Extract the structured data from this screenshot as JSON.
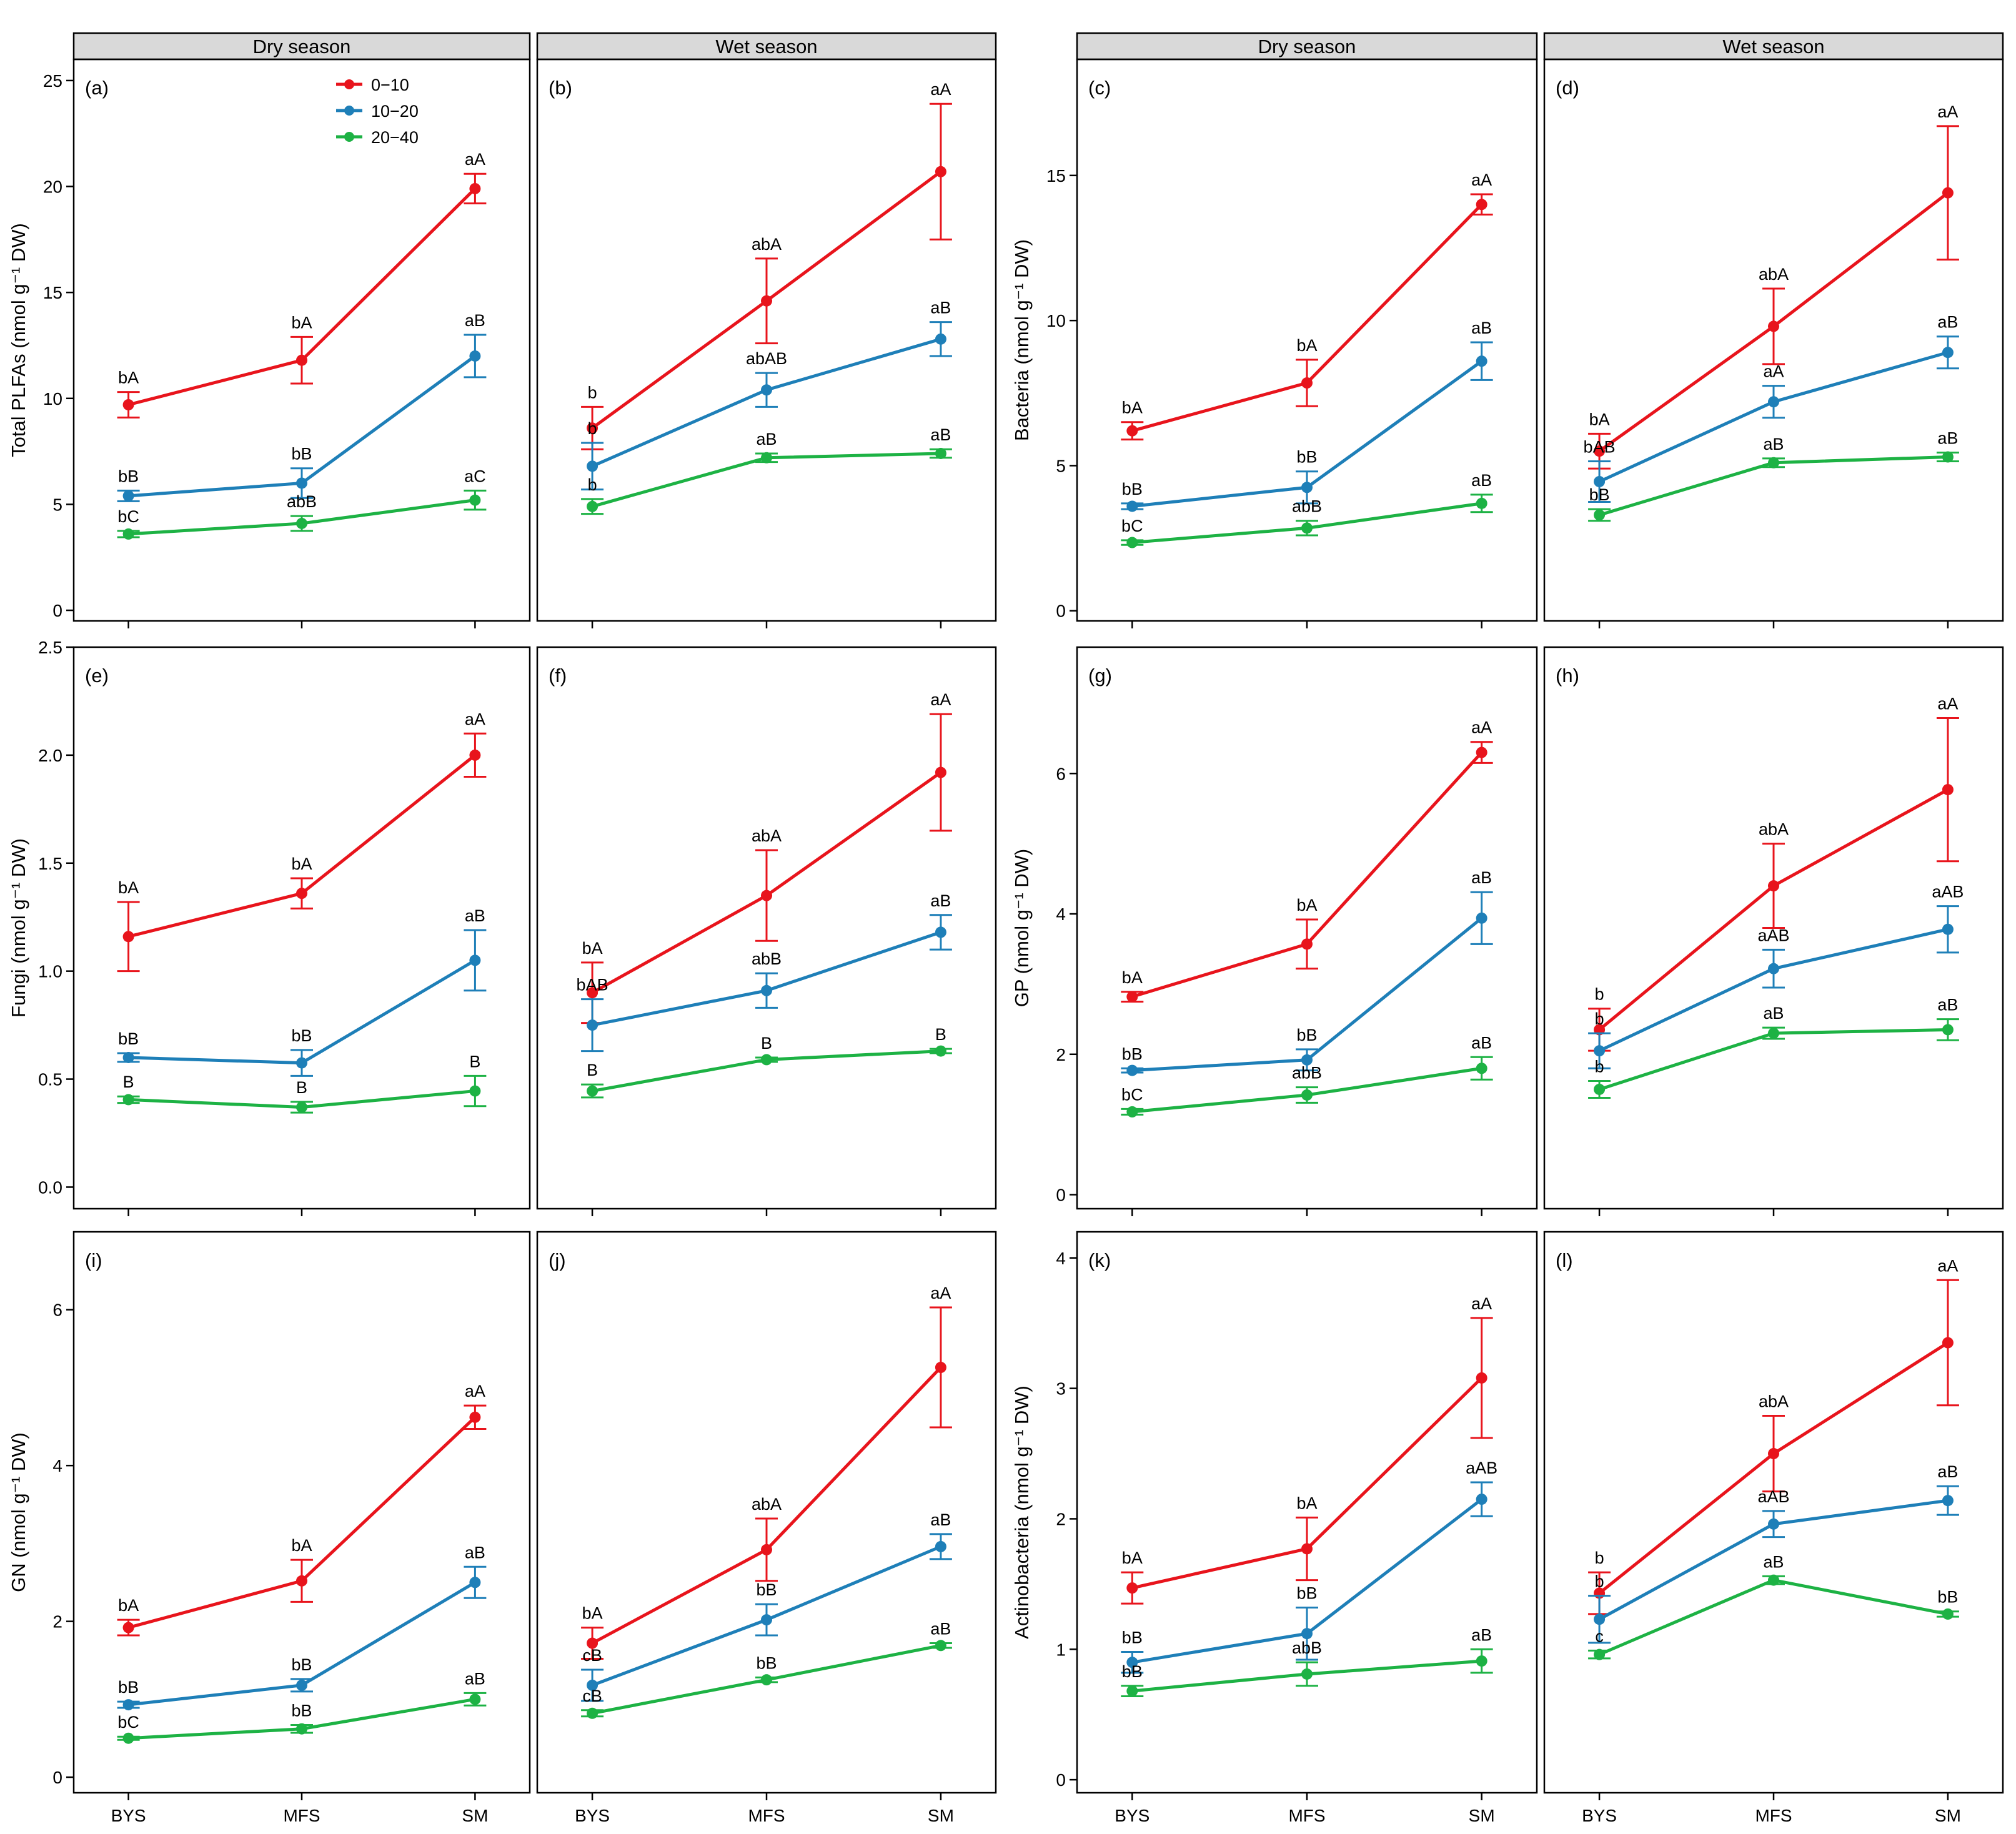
{
  "strips": [
    "Dry season",
    "Wet season"
  ],
  "x_categories": [
    "BYS",
    "MFS",
    "SM"
  ],
  "legend": [
    {
      "label": "0−10",
      "color": "#e8141c"
    },
    {
      "label": "10−20",
      "color": "#1e7fb8"
    },
    {
      "label": "20−40",
      "color": "#1db244"
    }
  ],
  "chart_data": [
    {
      "type": "line",
      "tag": "(a)",
      "strip": "Dry season",
      "ylabel": "Total PLFAs (nmol g⁻¹ DW)",
      "ylim": [
        -0.5,
        26
      ],
      "yticks": [
        0,
        5,
        10,
        15,
        20,
        25
      ],
      "categories": [
        "BYS",
        "MFS",
        "SM"
      ],
      "series": [
        {
          "name": "0−10",
          "values": [
            9.7,
            11.8,
            19.9
          ],
          "err": [
            0.6,
            1.1,
            0.7
          ],
          "labels": [
            "bA",
            "bA",
            "aA"
          ]
        },
        {
          "name": "10−20",
          "values": [
            5.4,
            6.0,
            12.0
          ],
          "err": [
            0.25,
            0.7,
            1.0
          ],
          "labels": [
            "bB",
            "bB",
            "aB"
          ]
        },
        {
          "name": "20−40",
          "values": [
            3.6,
            4.1,
            5.2
          ],
          "err": [
            0.15,
            0.35,
            0.45
          ],
          "labels": [
            "bC",
            "abB",
            "aC"
          ]
        }
      ]
    },
    {
      "type": "line",
      "tag": "(b)",
      "strip": "Wet season",
      "ylim": [
        -0.5,
        26
      ],
      "categories": [
        "BYS",
        "MFS",
        "SM"
      ],
      "series": [
        {
          "name": "0−10",
          "values": [
            8.6,
            14.6,
            20.7
          ],
          "err": [
            1.0,
            2.0,
            3.2
          ],
          "labels": [
            "b",
            "abA",
            "aA"
          ]
        },
        {
          "name": "10−20",
          "values": [
            6.8,
            10.4,
            12.8
          ],
          "err": [
            1.1,
            0.8,
            0.8
          ],
          "labels": [
            "b",
            "abAB",
            "aB"
          ]
        },
        {
          "name": "20−40",
          "values": [
            4.9,
            7.2,
            7.4
          ],
          "err": [
            0.35,
            0.2,
            0.2
          ],
          "labels": [
            "b",
            "aB",
            "aB"
          ]
        }
      ]
    },
    {
      "type": "line",
      "tag": "(c)",
      "strip": "Dry season",
      "ylabel": "Bacteria (nmol g⁻¹ DW)",
      "ylim": [
        -0.35,
        19
      ],
      "yticks": [
        0,
        5,
        10,
        15
      ],
      "categories": [
        "BYS",
        "MFS",
        "SM"
      ],
      "series": [
        {
          "name": "0−10",
          "values": [
            6.2,
            7.85,
            14.0
          ],
          "err": [
            0.3,
            0.8,
            0.35
          ],
          "labels": [
            "bA",
            "bA",
            "aA"
          ]
        },
        {
          "name": "10−20",
          "values": [
            3.6,
            4.25,
            8.6
          ],
          "err": [
            0.1,
            0.55,
            0.65
          ],
          "labels": [
            "bB",
            "bB",
            "aB"
          ]
        },
        {
          "name": "20−40",
          "values": [
            2.35,
            2.85,
            3.7
          ],
          "err": [
            0.08,
            0.25,
            0.3
          ],
          "labels": [
            "bC",
            "abB",
            "aB"
          ]
        }
      ]
    },
    {
      "type": "line",
      "tag": "(d)",
      "strip": "Wet season",
      "ylim": [
        -0.35,
        19
      ],
      "categories": [
        "BYS",
        "MFS",
        "SM"
      ],
      "series": [
        {
          "name": "0−10",
          "values": [
            5.5,
            9.8,
            14.4
          ],
          "err": [
            0.6,
            1.3,
            2.3
          ],
          "labels": [
            "bA",
            "abA",
            "aA"
          ]
        },
        {
          "name": "10−20",
          "values": [
            4.45,
            7.2,
            8.9
          ],
          "err": [
            0.7,
            0.55,
            0.55
          ],
          "labels": [
            "bAB",
            "aA",
            "aB"
          ]
        },
        {
          "name": "20−40",
          "values": [
            3.3,
            5.1,
            5.3
          ],
          "err": [
            0.2,
            0.15,
            0.15
          ],
          "labels": [
            "bB",
            "aB",
            "aB"
          ]
        }
      ]
    },
    {
      "type": "line",
      "tag": "(e)",
      "strip": "",
      "ylabel": "Fungi (nmol g⁻¹ DW)",
      "ylim": [
        -0.1,
        2.5
      ],
      "yticks": [
        0.0,
        0.5,
        1.0,
        1.5,
        2.0,
        2.5
      ],
      "categories": [
        "BYS",
        "MFS",
        "SM"
      ],
      "series": [
        {
          "name": "0−10",
          "values": [
            1.16,
            1.36,
            2.0
          ],
          "err": [
            0.16,
            0.07,
            0.1
          ],
          "labels": [
            "bA",
            "bA",
            "aA"
          ]
        },
        {
          "name": "10−20",
          "values": [
            0.6,
            0.575,
            1.05
          ],
          "err": [
            0.02,
            0.06,
            0.14
          ],
          "labels": [
            "bB",
            "bB",
            "aB"
          ]
        },
        {
          "name": "20−40",
          "values": [
            0.405,
            0.37,
            0.445
          ],
          "err": [
            0.015,
            0.025,
            0.07
          ],
          "labels": [
            "B",
            "B",
            "B"
          ]
        }
      ]
    },
    {
      "type": "line",
      "tag": "(f)",
      "strip": "",
      "ylim": [
        -0.1,
        2.5
      ],
      "categories": [
        "BYS",
        "MFS",
        "SM"
      ],
      "series": [
        {
          "name": "0−10",
          "values": [
            0.9,
            1.35,
            1.92
          ],
          "err": [
            0.14,
            0.21,
            0.27
          ],
          "labels": [
            "bA",
            "abA",
            "aA"
          ]
        },
        {
          "name": "10−20",
          "values": [
            0.75,
            0.91,
            1.18
          ],
          "err": [
            0.12,
            0.08,
            0.08
          ],
          "labels": [
            "bAB",
            "abB",
            "aB"
          ]
        },
        {
          "name": "20−40",
          "values": [
            0.445,
            0.59,
            0.63
          ],
          "err": [
            0.03,
            0.01,
            0.01
          ],
          "labels": [
            "B",
            "B",
            "B"
          ]
        }
      ]
    },
    {
      "type": "line",
      "tag": "(g)",
      "strip": "",
      "ylabel": "GP (nmol g⁻¹ DW)",
      "ylim": [
        -0.2,
        7.8
      ],
      "yticks": [
        0,
        2,
        4,
        6
      ],
      "categories": [
        "BYS",
        "MFS",
        "SM"
      ],
      "series": [
        {
          "name": "0−10",
          "values": [
            2.82,
            3.57,
            6.3
          ],
          "err": [
            0.07,
            0.35,
            0.15
          ],
          "labels": [
            "bA",
            "bA",
            "aA"
          ]
        },
        {
          "name": "10−20",
          "values": [
            1.77,
            1.92,
            3.94
          ],
          "err": [
            0.03,
            0.15,
            0.37
          ],
          "labels": [
            "bB",
            "bB",
            "aB"
          ]
        },
        {
          "name": "20−40",
          "values": [
            1.18,
            1.42,
            1.8
          ],
          "err": [
            0.04,
            0.11,
            0.16
          ],
          "labels": [
            "bC",
            "abB",
            "aB"
          ]
        }
      ]
    },
    {
      "type": "line",
      "tag": "(h)",
      "strip": "",
      "ylim": [
        -0.2,
        7.8
      ],
      "categories": [
        "BYS",
        "MFS",
        "SM"
      ],
      "series": [
        {
          "name": "0−10",
          "values": [
            2.35,
            4.4,
            5.77
          ],
          "err": [
            0.3,
            0.6,
            1.02
          ],
          "labels": [
            "b",
            "abA",
            "aA"
          ]
        },
        {
          "name": "10−20",
          "values": [
            2.05,
            3.22,
            3.78
          ],
          "err": [
            0.25,
            0.27,
            0.33
          ],
          "labels": [
            "b",
            "aAB",
            "aAB"
          ]
        },
        {
          "name": "20−40",
          "values": [
            1.5,
            2.3,
            2.35
          ],
          "err": [
            0.12,
            0.08,
            0.15
          ],
          "labels": [
            "b",
            "aB",
            "aB"
          ]
        }
      ]
    },
    {
      "type": "line",
      "tag": "(i)",
      "strip": "",
      "ylabel": "GN (nmol g⁻¹ DW)",
      "ylim": [
        -0.2,
        7.0
      ],
      "yticks": [
        0,
        2,
        4,
        6
      ],
      "categories": [
        "BYS",
        "MFS",
        "SM"
      ],
      "series": [
        {
          "name": "0−10",
          "values": [
            1.92,
            2.52,
            4.62
          ],
          "err": [
            0.1,
            0.27,
            0.15
          ],
          "labels": [
            "bA",
            "bA",
            "aA"
          ]
        },
        {
          "name": "10−20",
          "values": [
            0.93,
            1.18,
            2.5
          ],
          "err": [
            0.04,
            0.08,
            0.2
          ],
          "labels": [
            "bB",
            "bB",
            "aB"
          ]
        },
        {
          "name": "20−40",
          "values": [
            0.5,
            0.62,
            1.0
          ],
          "err": [
            0.02,
            0.05,
            0.08
          ],
          "labels": [
            "bC",
            "bB",
            "aB"
          ]
        }
      ]
    },
    {
      "type": "line",
      "tag": "(j)",
      "strip": "",
      "ylim": [
        -0.2,
        7.0
      ],
      "categories": [
        "BYS",
        "MFS",
        "SM"
      ],
      "series": [
        {
          "name": "0−10",
          "values": [
            1.72,
            2.92,
            5.26
          ],
          "err": [
            0.2,
            0.4,
            0.77
          ],
          "labels": [
            "bA",
            "abA",
            "aA"
          ]
        },
        {
          "name": "10−20",
          "values": [
            1.18,
            2.02,
            2.96
          ],
          "err": [
            0.2,
            0.2,
            0.16
          ],
          "labels": [
            "cB",
            "bB",
            "aB"
          ]
        },
        {
          "name": "20−40",
          "values": [
            0.82,
            1.25,
            1.69
          ],
          "err": [
            0.04,
            0.03,
            0.03
          ],
          "labels": [
            "cB",
            "bB",
            "aB"
          ]
        }
      ]
    },
    {
      "type": "line",
      "tag": "(k)",
      "strip": "",
      "ylabel": "Actinobacteria (nmol g⁻¹ DW)",
      "ylim": [
        -0.1,
        4.2
      ],
      "yticks": [
        0,
        1,
        2,
        3,
        4
      ],
      "categories": [
        "BYS",
        "MFS",
        "SM"
      ],
      "series": [
        {
          "name": "0−10",
          "values": [
            1.47,
            1.77,
            3.08
          ],
          "err": [
            0.12,
            0.24,
            0.46
          ],
          "labels": [
            "bA",
            "bA",
            "aA"
          ]
        },
        {
          "name": "10−20",
          "values": [
            0.9,
            1.12,
            2.15
          ],
          "err": [
            0.08,
            0.2,
            0.13
          ],
          "labels": [
            "bB",
            "bB",
            "aAB"
          ]
        },
        {
          "name": "20−40",
          "values": [
            0.68,
            0.81,
            0.91
          ],
          "err": [
            0.04,
            0.09,
            0.09
          ],
          "labels": [
            "bB",
            "abB",
            "aB"
          ]
        }
      ]
    },
    {
      "type": "line",
      "tag": "(l)",
      "strip": "",
      "ylim": [
        -0.1,
        4.2
      ],
      "categories": [
        "BYS",
        "MFS",
        "SM"
      ],
      "series": [
        {
          "name": "0−10",
          "values": [
            1.43,
            2.5,
            3.35
          ],
          "err": [
            0.16,
            0.29,
            0.48
          ],
          "labels": [
            "b",
            "abA",
            "aA"
          ]
        },
        {
          "name": "10−20",
          "values": [
            1.23,
            1.96,
            2.14
          ],
          "err": [
            0.18,
            0.1,
            0.11
          ],
          "labels": [
            "b",
            "aAB",
            "aB"
          ]
        },
        {
          "name": "20−40",
          "values": [
            0.96,
            1.53,
            1.27
          ],
          "err": [
            0.03,
            0.03,
            0.02
          ],
          "labels": [
            "c",
            "aB",
            "bB"
          ]
        }
      ]
    }
  ]
}
